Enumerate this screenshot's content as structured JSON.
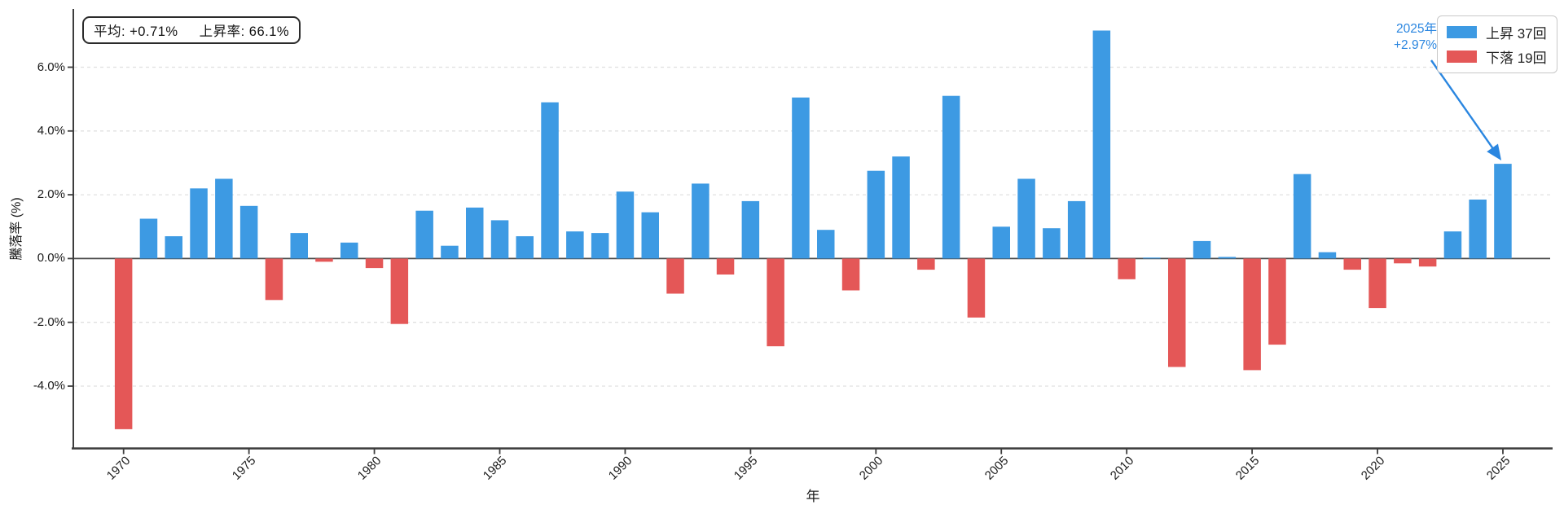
{
  "stats_box": {
    "average": "平均: +0.71%",
    "win_rate": "上昇率: 66.1%"
  },
  "legend": {
    "up": {
      "label": "上昇 37回",
      "color": "#3d9ae3"
    },
    "down": {
      "label": "下落 19回",
      "color": "#e45757"
    }
  },
  "annotation": {
    "year": "2025年",
    "value": "+2.97%",
    "color": "#2a86e0",
    "target_year": 2025
  },
  "chart_data": {
    "type": "bar",
    "title": "",
    "xlabel": "年",
    "ylabel": "騰落率 (%)",
    "grid": "dashed-horizontal",
    "legend_position": "top-right",
    "ylim": [
      -6,
      8
    ],
    "ytick_values": [
      6,
      4,
      2,
      0,
      -2,
      -4
    ],
    "ytick_labels": [
      "6.0%",
      "4.0%",
      "2.0%",
      "0.0%",
      "-2.0%",
      "-4.0%"
    ],
    "xtick_years": [
      1970,
      1975,
      1980,
      1985,
      1990,
      1995,
      2000,
      2005,
      2010,
      2015,
      2020,
      2025
    ],
    "positive_color": "#3d9ae3",
    "negative_color": "#e45757",
    "categories": [
      1970,
      1971,
      1972,
      1973,
      1974,
      1975,
      1976,
      1977,
      1978,
      1979,
      1980,
      1981,
      1982,
      1983,
      1984,
      1985,
      1986,
      1987,
      1988,
      1989,
      1990,
      1991,
      1992,
      1993,
      1994,
      1995,
      1996,
      1997,
      1998,
      1999,
      2000,
      2001,
      2002,
      2003,
      2004,
      2005,
      2006,
      2007,
      2008,
      2009,
      2010,
      2011,
      2012,
      2013,
      2014,
      2015,
      2016,
      2017,
      2018,
      2019,
      2020,
      2021,
      2022,
      2023,
      2024,
      2025
    ],
    "values": [
      -5.35,
      1.25,
      0.7,
      2.2,
      2.5,
      1.65,
      -1.3,
      0.8,
      -0.1,
      0.5,
      -0.3,
      -2.05,
      1.5,
      0.4,
      1.6,
      1.2,
      0.7,
      4.9,
      0.85,
      0.8,
      2.1,
      1.45,
      -1.1,
      2.35,
      -0.5,
      1.8,
      -2.75,
      5.05,
      0.9,
      -1.0,
      2.75,
      3.2,
      -0.35,
      5.1,
      -1.85,
      1.0,
      2.5,
      0.95,
      1.8,
      7.15,
      -0.65,
      0.03,
      -3.4,
      0.55,
      0.05,
      -3.5,
      -2.7,
      2.65,
      0.2,
      -0.35,
      -1.55,
      -0.15,
      -0.25,
      0.85,
      1.85,
      2.97
    ]
  }
}
